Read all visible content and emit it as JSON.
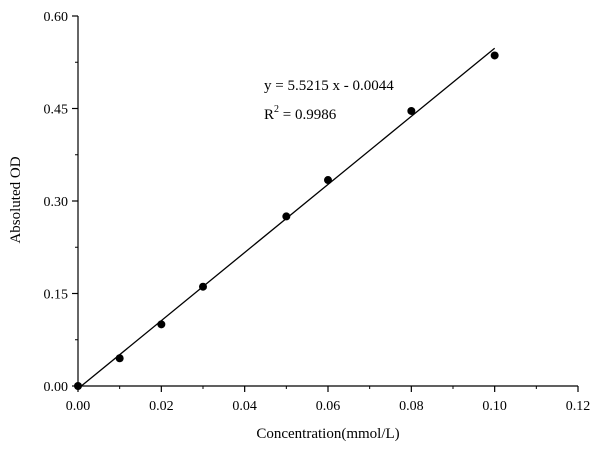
{
  "chart_data": {
    "type": "scatter",
    "title": "",
    "xlabel": "Concentration(mmol/L)",
    "ylabel": "Absoluted OD",
    "xlim": [
      0,
      0.12
    ],
    "ylim": [
      0,
      0.6
    ],
    "x_ticks": [
      "0.00",
      "0.02",
      "0.04",
      "0.06",
      "0.08",
      "0.10",
      "0.12"
    ],
    "y_ticks": [
      "0.00",
      "0.15",
      "0.30",
      "0.45",
      "0.60"
    ],
    "grid": false,
    "legend": "none",
    "series": [
      {
        "x": [
          0.0,
          0.01,
          0.02,
          0.03,
          0.05,
          0.06,
          0.08,
          0.1
        ],
        "y": [
          0.0,
          0.045,
          0.1,
          0.161,
          0.275,
          0.334,
          0.446,
          0.536
        ]
      }
    ],
    "fit_line": {
      "slope": 5.5215,
      "intercept": -0.0044,
      "x_range": [
        0.0,
        0.1
      ]
    },
    "annotations": {
      "equation": "y = 5.5215 x - 0.0044",
      "r2_prefix": "R",
      "r2_sup": "2",
      "r2_suffix": " = 0.9986"
    },
    "colors": {
      "marker": "#000000",
      "line": "#000000",
      "axis": "#000000"
    }
  }
}
